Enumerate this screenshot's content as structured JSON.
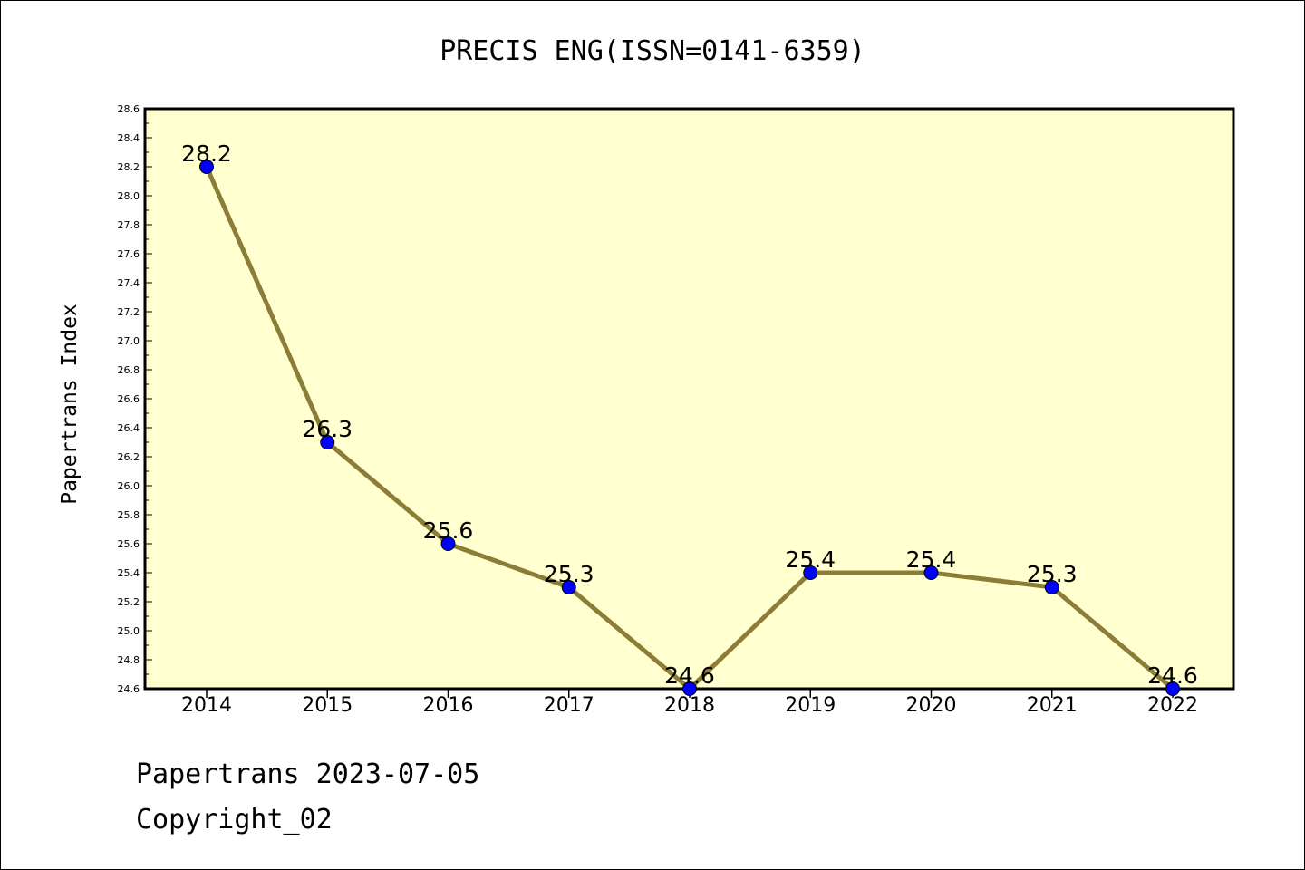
{
  "chart_data": {
    "type": "line",
    "title": "PRECIS ENG(ISSN=0141-6359)",
    "ylabel": "Papertrans Index",
    "xlabel": "",
    "categories": [
      "2014",
      "2015",
      "2016",
      "2017",
      "2018",
      "2019",
      "2020",
      "2021",
      "2022"
    ],
    "series": [
      {
        "values": [
          28.2,
          26.3,
          25.6,
          25.3,
          24.6,
          25.4,
          25.4,
          25.3,
          24.6
        ]
      }
    ],
    "data_labels": [
      "28.2",
      "26.3",
      "25.6",
      "25.3",
      "24.6",
      "25.4",
      "25.4",
      "25.3",
      "24.6"
    ],
    "yticks": [
      "24.6",
      "24.8",
      "25.0",
      "25.2",
      "25.4",
      "25.6",
      "25.8",
      "26.0",
      "26.2",
      "26.4",
      "26.6",
      "26.8",
      "27.0",
      "27.2",
      "27.4",
      "27.6",
      "27.8",
      "28.0",
      "28.2",
      "28.4",
      "28.6"
    ],
    "ylim": [
      24.6,
      28.6
    ],
    "grid": false,
    "legend": "none",
    "colors": {
      "plot_background": "#ffffd0",
      "line": "#8b7d36",
      "marker": "#0000ff"
    }
  },
  "footer": {
    "line1": "Papertrans 2023-07-05",
    "line2": "Copyright_02"
  }
}
